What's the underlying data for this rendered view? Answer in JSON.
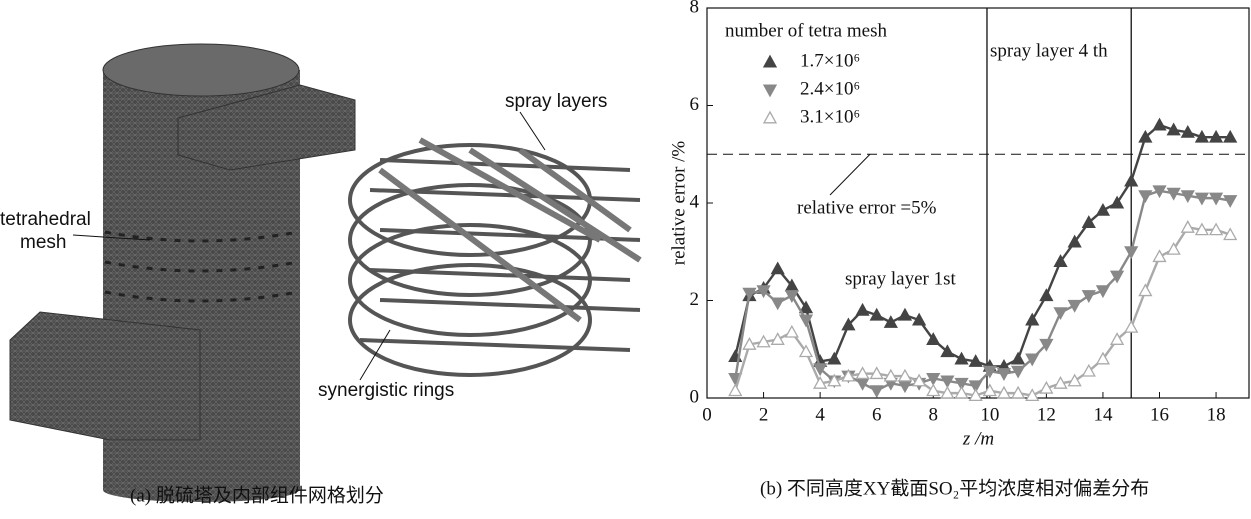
{
  "figure": {
    "left_panel": {
      "labels": [
        "tetrahedral",
        "mesh",
        "spray layers",
        "synergistic rings"
      ],
      "caption": "(a) 脱硫塔及内部组件网格划分"
    }
  },
  "chart_data": {
    "type": "line",
    "caption": "(b) 不同高度XY截面SO₂平均浓度相对偏差分布",
    "xlabel": "z /m",
    "ylabel": "relative error /%",
    "legend_title": "number of tetra mesh",
    "legend": "upper-left",
    "xlim": [
      0,
      19.2
    ],
    "ylim": [
      0,
      8
    ],
    "xticks": [
      0,
      2,
      4,
      6,
      8,
      10,
      12,
      14,
      16,
      18
    ],
    "yticks": [
      0,
      2,
      4,
      6,
      8
    ],
    "vlines": [
      9.9,
      15
    ],
    "hline": 5,
    "annotations": [
      "relative error =5%",
      "spray layer 1st",
      "spray layer 4 th"
    ],
    "x": [
      1,
      1.5,
      2,
      2.5,
      3,
      3.5,
      4,
      4.5,
      5,
      5.5,
      6,
      6.5,
      7,
      7.5,
      8,
      8.5,
      9,
      9.5,
      10,
      10.5,
      11,
      11.5,
      12,
      12.5,
      13,
      13.5,
      14,
      14.5,
      15,
      15.5,
      16,
      16.5,
      17,
      17.5,
      18,
      18.5
    ],
    "series": [
      {
        "name": "1.7×10⁶",
        "color": "#444444",
        "marker": "filled-up",
        "values": [
          0.85,
          2.1,
          2.25,
          2.65,
          2.3,
          1.85,
          0.75,
          0.8,
          1.5,
          1.8,
          1.7,
          1.55,
          1.7,
          1.6,
          1.2,
          0.95,
          0.8,
          0.75,
          0.65,
          0.65,
          0.8,
          1.6,
          2.1,
          2.8,
          3.2,
          3.6,
          3.85,
          4.0,
          4.45,
          5.35,
          5.6,
          5.5,
          5.45,
          5.35,
          5.35,
          5.35
        ]
      },
      {
        "name": "2.4×10⁶",
        "color": "#888888",
        "marker": "filled-down",
        "values": [
          0.4,
          2.15,
          2.2,
          1.95,
          2.1,
          1.6,
          0.6,
          0.35,
          0.45,
          0.3,
          0.15,
          0.3,
          0.25,
          0.3,
          0.4,
          0.35,
          0.3,
          0.25,
          0.55,
          0.5,
          0.55,
          0.8,
          1.1,
          1.75,
          1.9,
          2.1,
          2.2,
          2.5,
          3.0,
          4.15,
          4.25,
          4.2,
          4.15,
          4.1,
          4.1,
          4.05
        ]
      },
      {
        "name": "3.1×10⁶",
        "color": "#aaaaaa",
        "marker": "open-up",
        "values": [
          0.15,
          1.1,
          1.15,
          1.2,
          1.35,
          0.95,
          0.3,
          0.35,
          0.45,
          0.5,
          0.5,
          0.45,
          0.45,
          0.35,
          0.15,
          0.1,
          0.1,
          0.05,
          0.15,
          0.1,
          0.1,
          0.05,
          0.2,
          0.3,
          0.35,
          0.55,
          0.8,
          1.2,
          1.45,
          2.2,
          2.9,
          3.05,
          3.5,
          3.45,
          3.45,
          3.35
        ]
      }
    ]
  }
}
